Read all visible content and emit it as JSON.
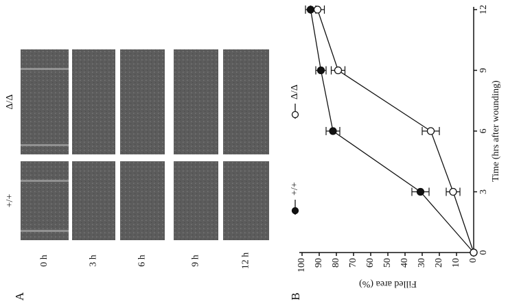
{
  "panel_a": {
    "label": "A",
    "genotypes": [
      "+/+",
      "Δ/Δ"
    ],
    "times": [
      "0 h",
      "3 h",
      "6 h",
      "9 h",
      "12 h"
    ]
  },
  "chart_data": {
    "type": "line",
    "panel_label": "B",
    "x_label": "Time (hrs after wounding)",
    "y_label": "Filled area (%)",
    "x": [
      0,
      3,
      6,
      9,
      12
    ],
    "series": [
      {
        "name": "+/+",
        "color": "#111111",
        "marker": "filled",
        "values": [
          0,
          31,
          82,
          89,
          95
        ],
        "errors": [
          0,
          5,
          4,
          3,
          3
        ]
      },
      {
        "name": "Δ/Δ",
        "color": "#111111",
        "marker": "open",
        "values": [
          0,
          12,
          25,
          79,
          91
        ],
        "errors": [
          0,
          4,
          5,
          4,
          4
        ]
      }
    ],
    "xlim": [
      0,
      12
    ],
    "ylim": [
      0,
      100
    ],
    "xticks": [
      0,
      3,
      6,
      9,
      12
    ],
    "yticks": [
      0,
      10,
      20,
      30,
      40,
      50,
      60,
      70,
      80,
      90,
      100
    ]
  }
}
